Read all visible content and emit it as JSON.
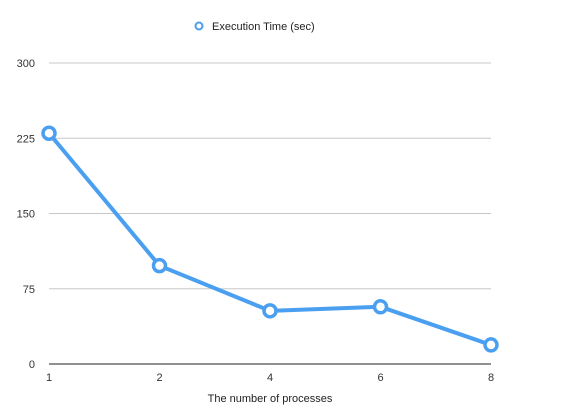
{
  "chart_data": {
    "type": "line",
    "xlabel": "The number of processes",
    "ylabel": "",
    "categories": [
      "1",
      "2",
      "4",
      "6",
      "8"
    ],
    "series": [
      {
        "name": "Execution Time (sec)",
        "values": [
          230,
          98,
          53,
          57,
          19
        ],
        "color": "#4a9ff0"
      }
    ],
    "ylim": [
      0,
      300
    ],
    "yticks": [
      0,
      75,
      150,
      225,
      300
    ],
    "grid": true,
    "legend_position": "top-center",
    "colors": {
      "gridline": "#c8c8c8",
      "axis": "#222222",
      "text": "#333333"
    }
  }
}
